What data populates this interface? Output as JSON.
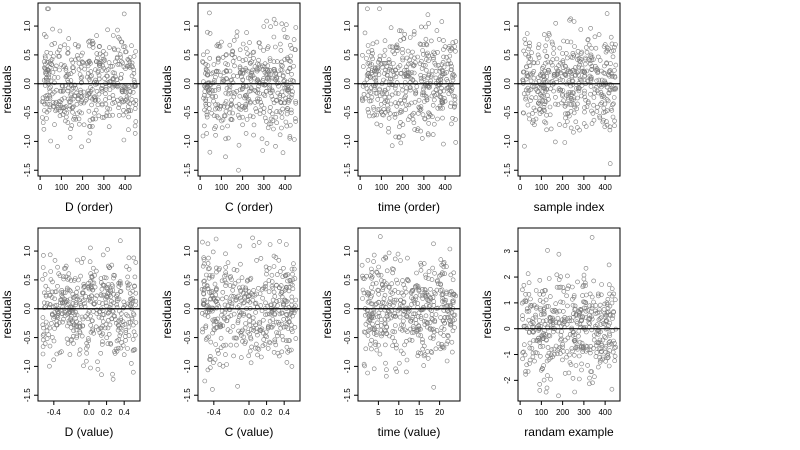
{
  "chart_data": [
    {
      "type": "scatter",
      "xlabel": "D (order)",
      "ylabel": "residuals",
      "xlim": [
        -10,
        470
      ],
      "ylim": [
        -1.6,
        1.4
      ],
      "xticks": [
        "0",
        "100",
        "200",
        "300",
        "400"
      ],
      "yticks": [
        "-1.5",
        "-1.0",
        "-0.5",
        "0.0",
        "0.5",
        "1.0"
      ],
      "zero_line": 0,
      "n_points": 460,
      "point_spread": [
        -1.5,
        1.3
      ],
      "seed": 11
    },
    {
      "type": "scatter",
      "xlabel": "C (order)",
      "ylabel": "residuals",
      "xlim": [
        -10,
        470
      ],
      "ylim": [
        -1.6,
        1.4
      ],
      "xticks": [
        "0",
        "100",
        "200",
        "300",
        "400"
      ],
      "yticks": [
        "-1.5",
        "-1.0",
        "-0.5",
        "0.0",
        "0.5",
        "1.0"
      ],
      "zero_line": 0,
      "n_points": 460,
      "point_spread": [
        -1.5,
        1.3
      ],
      "seed": 23
    },
    {
      "type": "scatter",
      "xlabel": "time (order)",
      "ylabel": "residuals",
      "xlim": [
        -10,
        470
      ],
      "ylim": [
        -1.6,
        1.4
      ],
      "xticks": [
        "0",
        "100",
        "200",
        "300",
        "400"
      ],
      "yticks": [
        "-1.5",
        "-1.0",
        "-0.5",
        "0.0",
        "0.5",
        "1.0"
      ],
      "zero_line": 0,
      "n_points": 460,
      "point_spread": [
        -1.5,
        1.3
      ],
      "seed": 37
    },
    {
      "type": "scatter",
      "xlabel": "sample index",
      "ylabel": "residuals",
      "xlim": [
        -10,
        470
      ],
      "ylim": [
        -1.6,
        1.4
      ],
      "xticks": [
        "0",
        "100",
        "200",
        "300",
        "400"
      ],
      "yticks": [
        "-1.5",
        "-1.0",
        "-0.5",
        "0.0",
        "0.5",
        "1.0"
      ],
      "zero_line": 0,
      "n_points": 460,
      "point_spread": [
        -1.5,
        1.3
      ],
      "seed": 41
    },
    {
      "type": "scatter",
      "xlabel": "D (value)",
      "ylabel": "residuals",
      "xlim": [
        -0.58,
        0.58
      ],
      "ylim": [
        -1.6,
        1.4
      ],
      "xticks": [
        "-0.4",
        "0.0",
        "0.2",
        "0.4"
      ],
      "yticks": [
        "-1.5",
        "-1.0",
        "-0.5",
        "0.0",
        "0.5",
        "1.0"
      ],
      "zero_line": 0,
      "n_points": 460,
      "point_spread": [
        -1.5,
        1.3
      ],
      "seed": 53
    },
    {
      "type": "scatter",
      "xlabel": "C (value)",
      "ylabel": "residuals",
      "xlim": [
        -0.58,
        0.58
      ],
      "ylim": [
        -1.6,
        1.4
      ],
      "xticks": [
        "-0.4",
        "0.0",
        "0.2",
        "0.4"
      ],
      "yticks": [
        "-1.5",
        "-1.0",
        "-0.5",
        "0.0",
        "0.5",
        "1.0"
      ],
      "zero_line": 0,
      "n_points": 460,
      "point_spread": [
        -1.5,
        1.3
      ],
      "seed": 67
    },
    {
      "type": "scatter",
      "xlabel": "time (value)",
      "ylabel": "residuals",
      "xlim": [
        0,
        25
      ],
      "ylim": [
        -1.6,
        1.4
      ],
      "xticks": [
        "5",
        "10",
        "15",
        "20"
      ],
      "yticks": [
        "-1.5",
        "-1.0",
        "-0.5",
        "0.0",
        "0.5",
        "1.0"
      ],
      "zero_line": 0,
      "n_points": 460,
      "point_spread": [
        -1.5,
        1.3
      ],
      "seed": 71
    },
    {
      "type": "scatter",
      "xlabel": "randam example",
      "ylabel": "residuals",
      "xlim": [
        -10,
        470
      ],
      "ylim": [
        -2.8,
        3.9
      ],
      "xticks": [
        "0",
        "100",
        "200",
        "300",
        "400"
      ],
      "yticks": [
        "-2",
        "-1",
        "0",
        "1",
        "2",
        "3"
      ],
      "zero_line": 0,
      "n_points": 460,
      "point_spread": [
        -2.6,
        3.6
      ],
      "seed": 89
    }
  ]
}
